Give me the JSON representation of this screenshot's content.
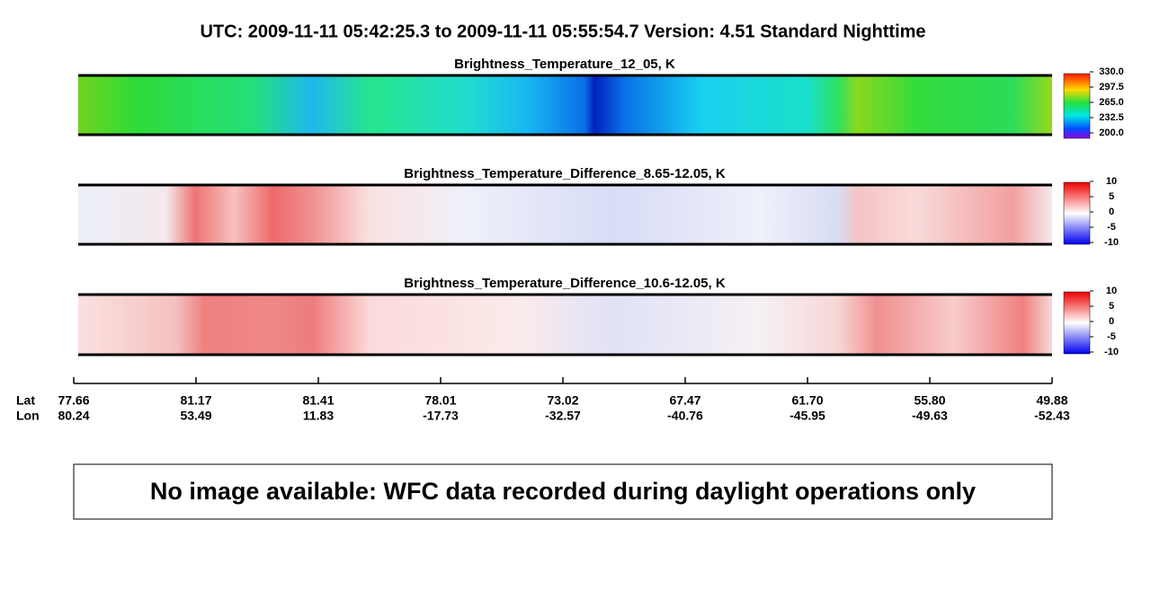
{
  "header": {
    "title": "UTC:  2009-11-11   05:42:25.3  to  2009-11-11   05:55:54.7    Version: 4.51  Standard Nighttime"
  },
  "panels": [
    {
      "title": "Brightness_Temperature_12_05, K",
      "colorbar_ticks": [
        "330.0",
        "297.5",
        "265.0",
        "232.5",
        "200.0"
      ]
    },
    {
      "title": "Brightness_Temperature_Difference_8.65-12.05, K",
      "colorbar_ticks": [
        "10",
        "5",
        "0",
        "-5",
        "-10"
      ]
    },
    {
      "title": "Brightness_Temperature_Difference_10.6-12.05, K",
      "colorbar_ticks": [
        "10",
        "5",
        "0",
        "-5",
        "-10"
      ]
    }
  ],
  "axis": {
    "lat_name": "Lat",
    "lon_name": "Lon",
    "lat": [
      "77.66",
      "81.17",
      "81.41",
      "78.01",
      "73.02",
      "67.47",
      "61.70",
      "55.80",
      "49.88"
    ],
    "lon": [
      "80.24",
      "53.49",
      "11.83",
      "-17.73",
      "-32.57",
      "-40.76",
      "-45.95",
      "-49.63",
      "-52.43"
    ]
  },
  "message": "No image available: WFC data recorded during daylight operations only"
}
